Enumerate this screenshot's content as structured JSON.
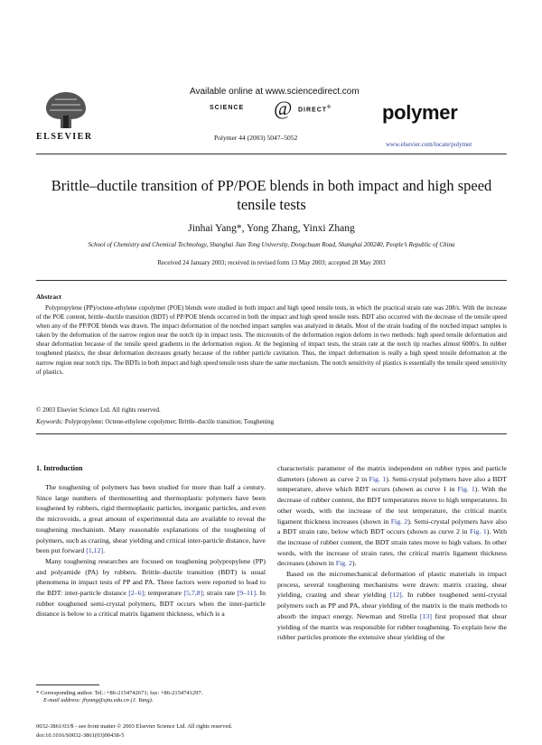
{
  "header": {
    "publisher_word": "ELSEVIER",
    "available_online": "Available online at www.sciencedirect.com",
    "sd_left": "SCIENCE",
    "sd_right": "DIRECT",
    "sd_symbol": "@",
    "sd_trademark": "®",
    "citation": "Polymer 44 (2003) 5047–5052",
    "journal": "polymer",
    "journal_url": "www.elsevier.com/locate/polymer"
  },
  "article": {
    "title": "Brittle–ductile transition of PP/POE blends in both impact and high speed tensile tests",
    "authors": "Jinhai Yang*, Yong Zhang, Yinxi Zhang",
    "affiliation": "School of Chemistry and Chemical Technology, Shanghai Jiao Tong University, Dongchuan Road, Shanghai 200240, People’s Republic of China",
    "received": "Received 24 January 2003; received in revised form 13 May 2003; accepted 28 May 2003"
  },
  "abstract": {
    "heading": "Abstract",
    "text": "Polypropylene (PP)/octene-ethylene copolymer (POE) blends were studied in both impact and high speed tensile tests, in which the practical strain rate was 208/s. With the increase of the POE content, brittle–ductile transition (BDT) of PP/POE blends occurred in both the impact and high speed tensile tests. BDT also occurred with the decrease of the tensile speed when any of the PP/POE blends was drawn. The impact deformation of the notched impact samples was analyzed in details. Most of the strain loading of the notched impact samples is taken by the deformation of the narrow region near the notch tip in impact tests. The microunits of the deformation region deform in two methods: high speed tensile deformation and shear deformation because of the tensile speed gradients in the deformation region. At the beginning of impact tests, the strain rate at the notch tip reaches almost 6000/s. In rubber toughened plastics, the shear deformation decreases greatly because of the rubber particle cavitation. Thus, the impact deformation is really a high speed tensile deformation at the narrow region near notch tips. The BDTs in both impact and high speed tensile tests share the same mechanism. The notch sensitivity of plastics is essentially the tensile speed sensitivity of plastics.",
    "copyright": "© 2003 Elsevier Science Ltd. All rights reserved.",
    "keywords_label": "Keywords:",
    "keywords": " Polypropylene; Octene-ethylene copolymer; Brittle–ductile transition; Toughening"
  },
  "body": {
    "section_heading": "1. Introduction",
    "col1_p1_a": "The toughening of polymers has been studied for more than half a century. Since large numbers of thermosetting and thermoplastic polymers have been toughened by rubbers, rigid thermoplastic particles, inorganic particles, and even the microvoids, a great amount of experimental data are available to reveal the toughening mechanism. Many reasonable explanations of the toughening of polymers, such as crazing, shear yielding and critical inter-particle distance, have been put forward ",
    "col1_p1_ref": "[1,12]",
    "col1_p1_b": ".",
    "col1_p2_a": "Many toughening researches are focused on toughening polypropylene (PP) and polyamide (PA) by rubbers. Brittle–ductile transition (BDT) is usual phenomena in impact tests of PP and PA. Three factors were reported to lead to the BDT: inter-particle distance ",
    "col1_p2_ref1": "[2–6]",
    "col1_p2_b": "; temperature ",
    "col1_p2_ref2": "[5,7,8]",
    "col1_p2_c": "; strain rate ",
    "col1_p2_ref3": "[9–11]",
    "col1_p2_d": ". In rubber toughened semi-crystal polymers, BDT occurs when the inter-particle distance is below to a critical matrix ligament thickness, which is a",
    "col2_p1_a": "characteristic parameter of the matrix independent on rubber types and particle diameters (shown as curve 2 in ",
    "col2_p1_ref1": "Fig. 1",
    "col2_p1_b": "). Semi-crystal polymers have also a BDT temperature, above which BDT occurs (shown as curve 1 in ",
    "col2_p1_ref2": "Fig. 1",
    "col2_p1_c": "). With the decrease of rubber content, the BDT temperatures move to high temperatures. In other words, with the increase of the test temperature, the critical matrix ligament thickness increases (shown in ",
    "col2_p1_ref3": "Fig. 2",
    "col2_p1_d": "). Semi-crystal polymers have also a BDT strain rate, below which BDT occurs (shown as curve 2 in ",
    "col2_p1_ref4": "Fig. 1",
    "col2_p1_e": "). With the increase of rubber content, the BDT strain rates move to high values. In other words, with the increase of strain rates, the critical matrix ligament thickness decreases (shown in ",
    "col2_p1_ref5": "Fig. 2",
    "col2_p1_f": ").",
    "col2_p2_a": "Based on the micromechanical deformation of plastic materials in impact process, several toughening mechanisms were drawn: matrix crazing, shear yielding, crazing and shear yielding ",
    "col2_p2_ref1": "[12]",
    "col2_p2_b": ". In rubber toughened semi-crystal polymers such as PP and PA, shear yielding of the matrix is the main methods to absorb the impact energy. Newman and Strella ",
    "col2_p2_ref2": "[13]",
    "col2_p2_c": " first proposed that shear yielding of the matrix was responsible for rubber toughening. To explain how the rubber particles promote the extensive shear yielding of the"
  },
  "footer": {
    "footnote_1": "* Corresponding author. Tel.: +86-2154742671; fax: +86-2154741297.",
    "footnote_2": "E-mail address: jhyang@sjtu.edu.cn (J. Yang).",
    "issn": "0032-3861/03/$ - see front matter © 2003 Elsevier Science Ltd. All rights reserved.",
    "doi": "doi:10.1016/S0032-3861(03)00438-5"
  }
}
